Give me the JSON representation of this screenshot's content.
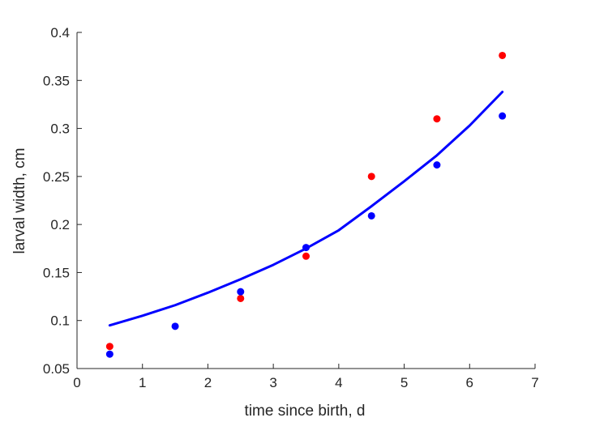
{
  "chart_data": {
    "type": "scatter",
    "xlabel": "time since birth, d",
    "ylabel": "larval width, cm",
    "xlim": [
      0,
      7
    ],
    "ylim": [
      0.05,
      0.4
    ],
    "xticks": [
      0,
      1,
      2,
      3,
      4,
      5,
      6,
      7
    ],
    "xtick_labels": [
      "0",
      "1",
      "2",
      "3",
      "4",
      "5",
      "6",
      "7"
    ],
    "yticks": [
      0.05,
      0.1,
      0.15,
      0.2,
      0.25,
      0.3,
      0.35,
      0.4
    ],
    "ytick_labels": [
      "0.05",
      "0.1",
      "0.15",
      "0.2",
      "0.25",
      "0.3",
      "0.35",
      "0.4"
    ],
    "grid": false,
    "series": [
      {
        "kind": "points",
        "color": "#ff0000",
        "x": [
          0.5,
          2.5,
          3.5,
          4.5,
          5.5,
          6.5
        ],
        "y": [
          0.073,
          0.123,
          0.167,
          0.25,
          0.31,
          0.376
        ]
      },
      {
        "kind": "points",
        "color": "#0000ff",
        "x": [
          0.5,
          1.5,
          2.5,
          3.5,
          4.5,
          5.5,
          6.5
        ],
        "y": [
          0.065,
          0.094,
          0.13,
          0.176,
          0.209,
          0.262,
          0.313
        ]
      },
      {
        "kind": "line",
        "color": "#0000ff",
        "x": [
          0.5,
          1.0,
          1.5,
          2.0,
          2.5,
          3.0,
          3.5,
          4.0,
          4.5,
          5.0,
          5.5,
          6.0,
          6.5
        ],
        "y": [
          0.095,
          0.105,
          0.116,
          0.129,
          0.143,
          0.158,
          0.175,
          0.194,
          0.219,
          0.245,
          0.272,
          0.303,
          0.338
        ]
      }
    ]
  }
}
